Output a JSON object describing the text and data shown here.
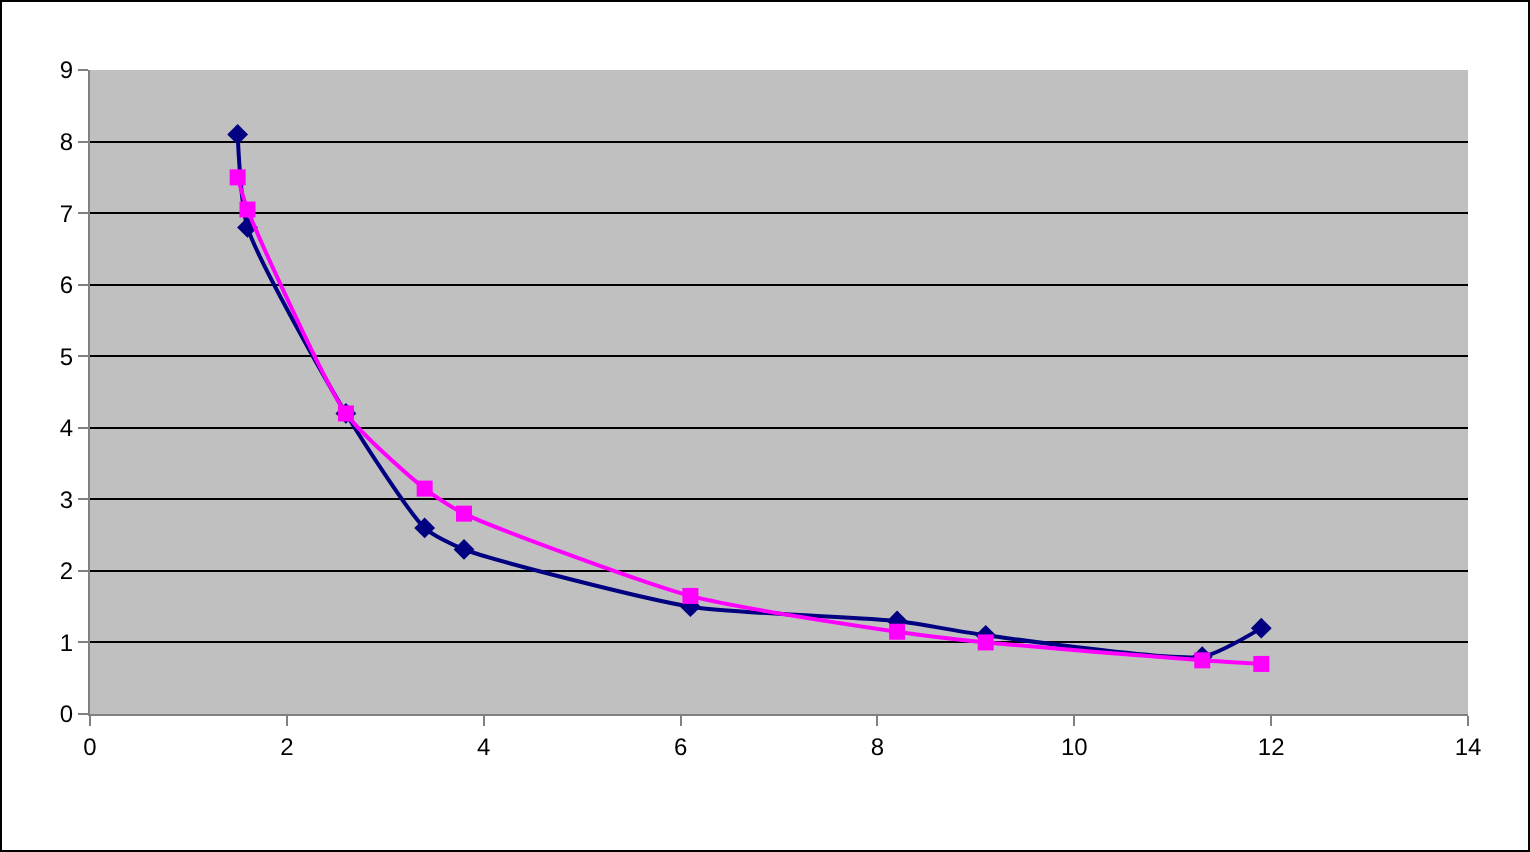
{
  "chart_data": {
    "type": "line",
    "xlim": [
      0,
      14
    ],
    "xticks": [
      0,
      2,
      4,
      6,
      8,
      10,
      12,
      14
    ],
    "ylim": [
      0,
      9
    ],
    "yticks": [
      0,
      1,
      2,
      3,
      4,
      5,
      6,
      7,
      8,
      9
    ],
    "grid": "y",
    "legend": false,
    "series": [
      {
        "color": "#000080",
        "marker": "diamond",
        "x": [
          1.5,
          1.6,
          2.6,
          3.4,
          3.8,
          6.1,
          8.2,
          9.1,
          11.3,
          11.9
        ],
        "values": [
          8.1,
          6.8,
          4.2,
          2.6,
          2.3,
          1.5,
          1.3,
          1.1,
          0.8,
          1.2
        ]
      },
      {
        "color": "#ff00ff",
        "marker": "square",
        "x": [
          1.5,
          1.6,
          2.6,
          3.4,
          3.8,
          6.1,
          8.2,
          9.1,
          11.3,
          11.9
        ],
        "values": [
          7.5,
          7.05,
          4.2,
          3.15,
          2.8,
          1.65,
          1.15,
          1.0,
          0.75,
          0.7
        ]
      }
    ]
  }
}
